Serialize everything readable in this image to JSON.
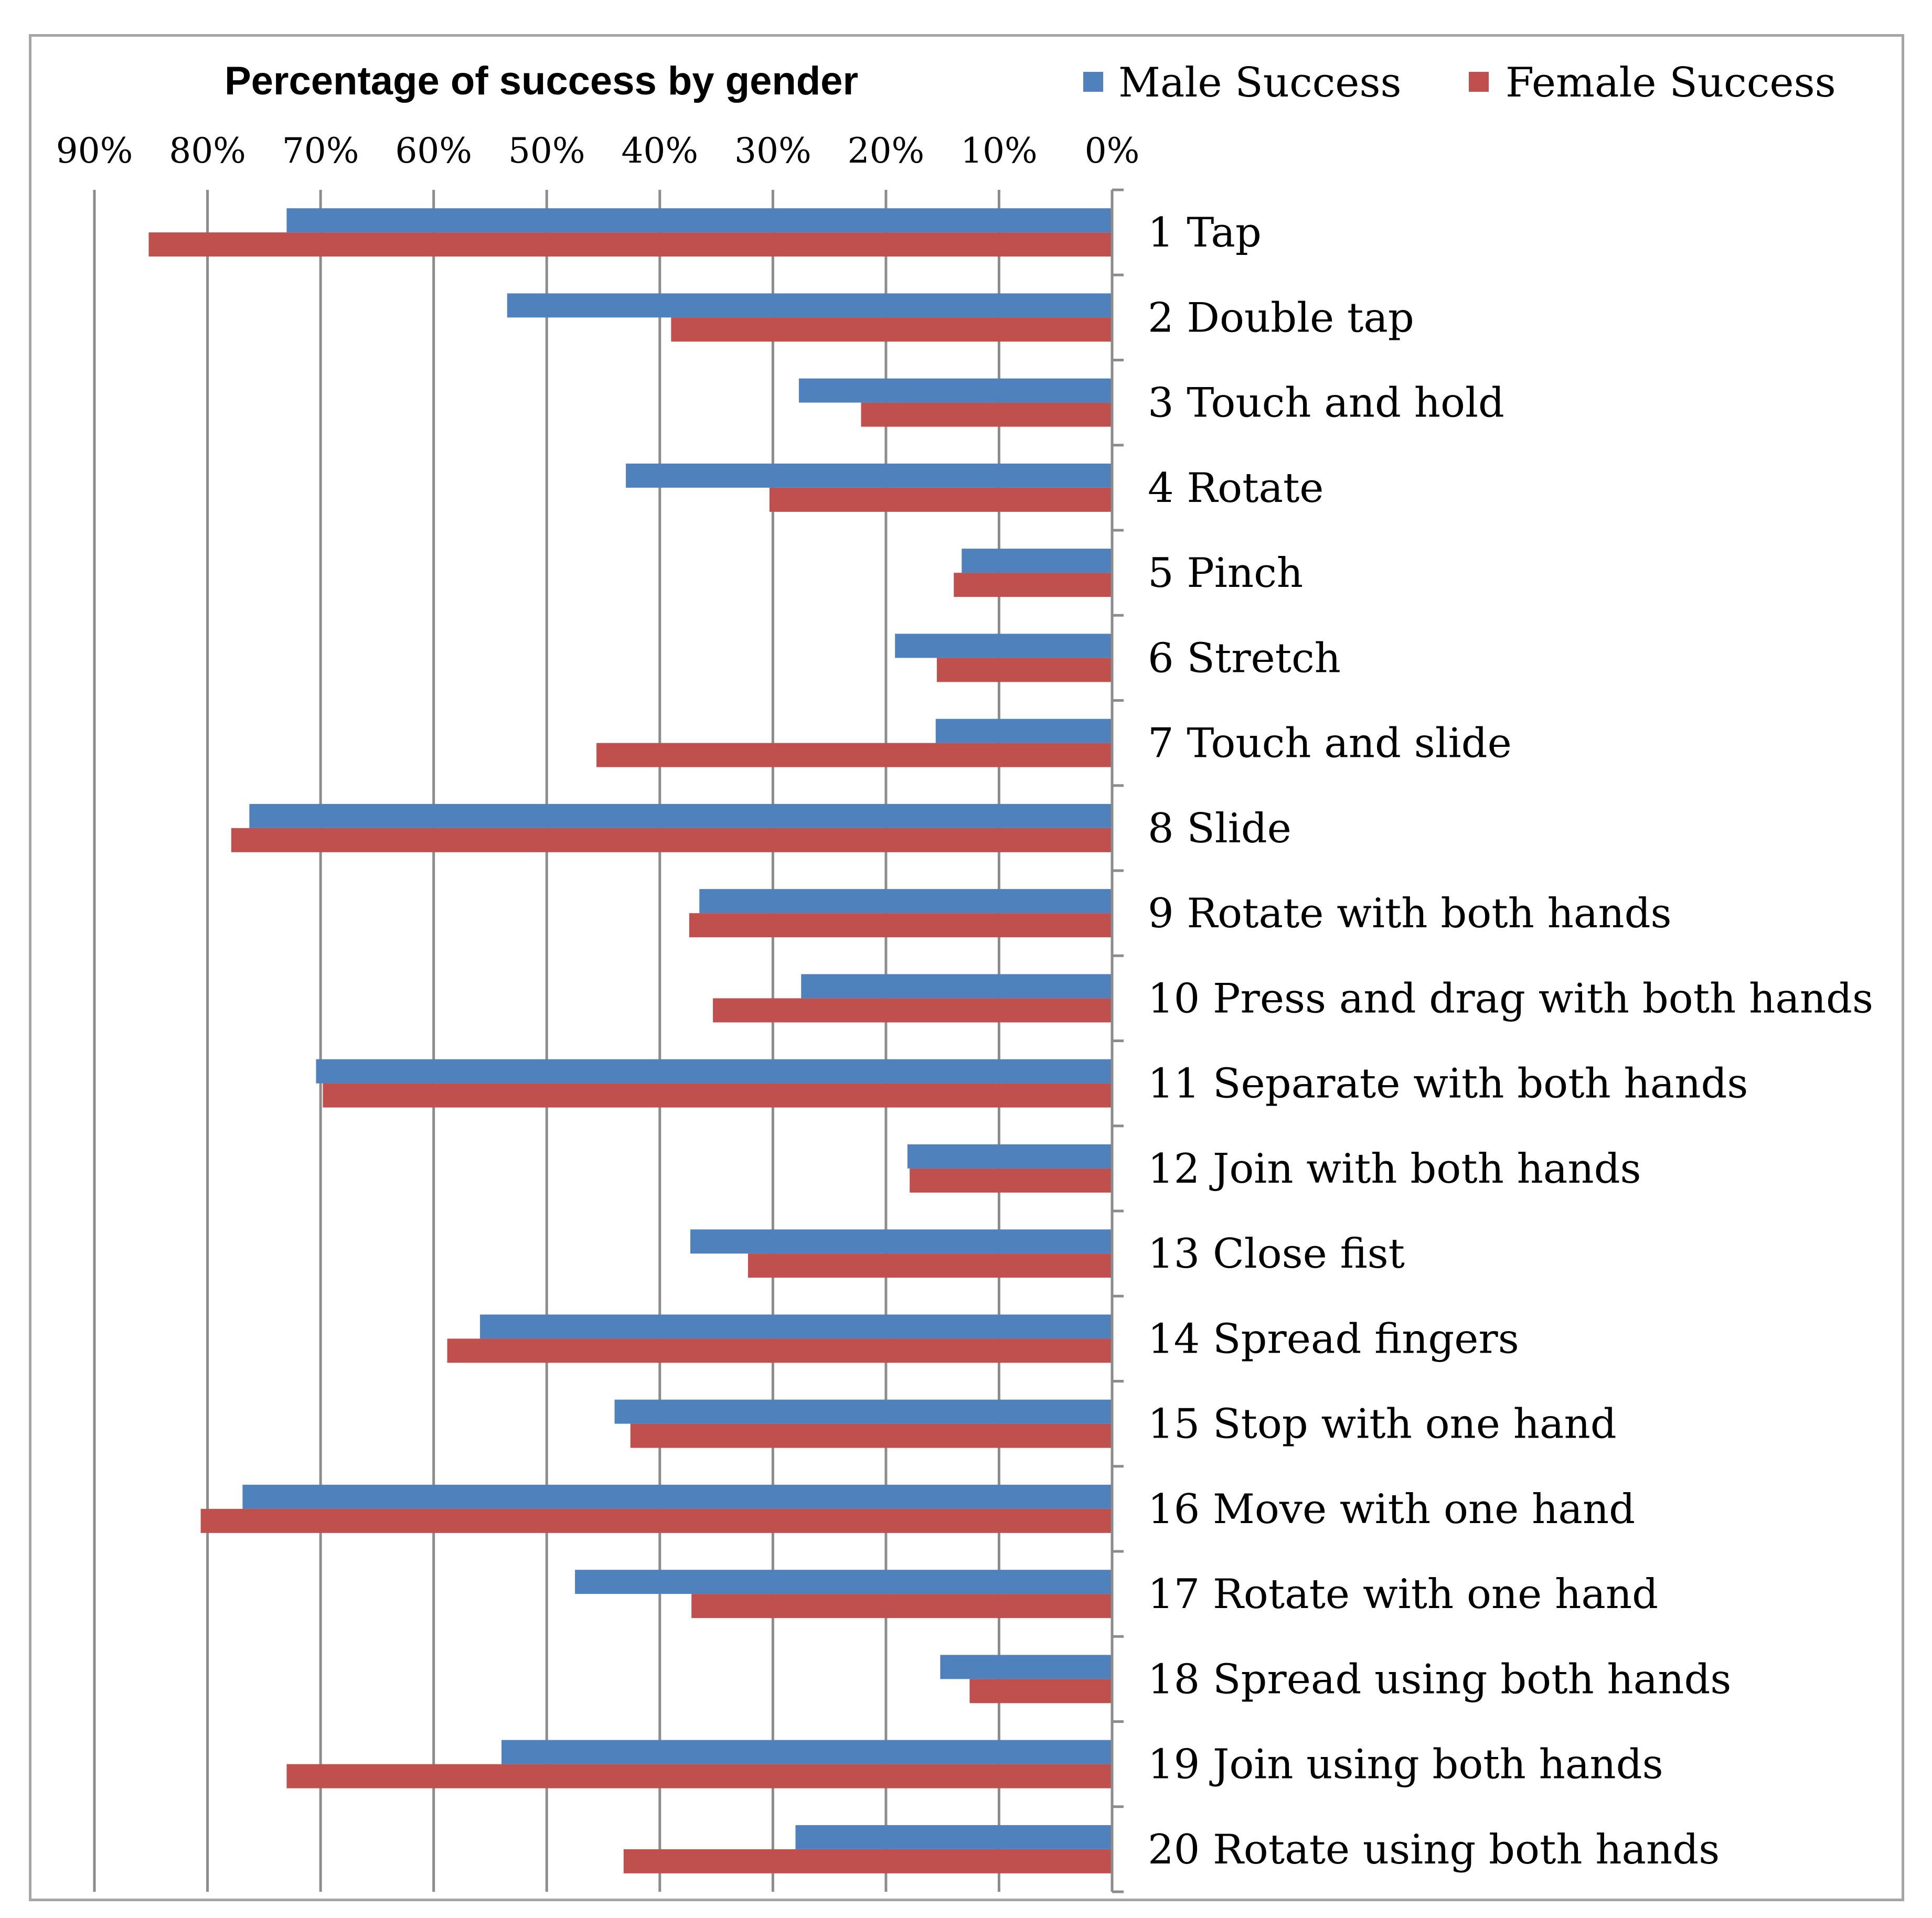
{
  "chart_data": {
    "type": "bar",
    "orientation": "horizontal",
    "x_reversed": true,
    "title": "Percentage of success by gender",
    "xlim": [
      0,
      90
    ],
    "x_unit": "%",
    "xticks": [
      {
        "value": 90,
        "label": "90%"
      },
      {
        "value": 80,
        "label": "80%"
      },
      {
        "value": 70,
        "label": "70%"
      },
      {
        "value": 60,
        "label": "60%"
      },
      {
        "value": 50,
        "label": "50%"
      },
      {
        "value": 40,
        "label": "40%"
      },
      {
        "value": 30,
        "label": "30%"
      },
      {
        "value": 20,
        "label": "20%"
      },
      {
        "value": 10,
        "label": "10%"
      },
      {
        "value": 0,
        "label": "0%"
      }
    ],
    "grid": true,
    "legend_position": "top",
    "categories": [
      "1 Tap",
      "2 Double tap",
      "3 Touch and hold",
      "4 Rotate",
      "5 Pinch",
      "6 Stretch",
      "7 Touch and slide",
      "8 Slide",
      "9 Rotate with both hands",
      "10 Press and drag with both hands",
      "11 Separate with both hands",
      "12 Join with both hands",
      "13 Close fist",
      "14 Spread fingers",
      "15 Stop with one hand",
      "16 Move with one hand",
      "17 Rotate with one hand",
      "18 Spread using both hands",
      "19 Join using both hands",
      "20 Rotate using both hands"
    ],
    "series": [
      {
        "name": "Male Success",
        "color": "#4f81bd",
        "values": [
          73,
          53.5,
          27.7,
          43,
          13.3,
          19.2,
          15.6,
          76.3,
          36.5,
          27.5,
          70.4,
          18.1,
          37.3,
          55.9,
          44,
          76.9,
          47.5,
          15.2,
          54,
          28
        ]
      },
      {
        "name": "Female Success",
        "color": "#c0504d",
        "values": [
          85.2,
          39,
          22.2,
          30.3,
          14,
          15.5,
          45.6,
          77.9,
          37.4,
          35.3,
          69.8,
          17.9,
          32.2,
          58.8,
          42.6,
          80.6,
          37.2,
          12.6,
          73,
          43.2
        ]
      }
    ]
  }
}
